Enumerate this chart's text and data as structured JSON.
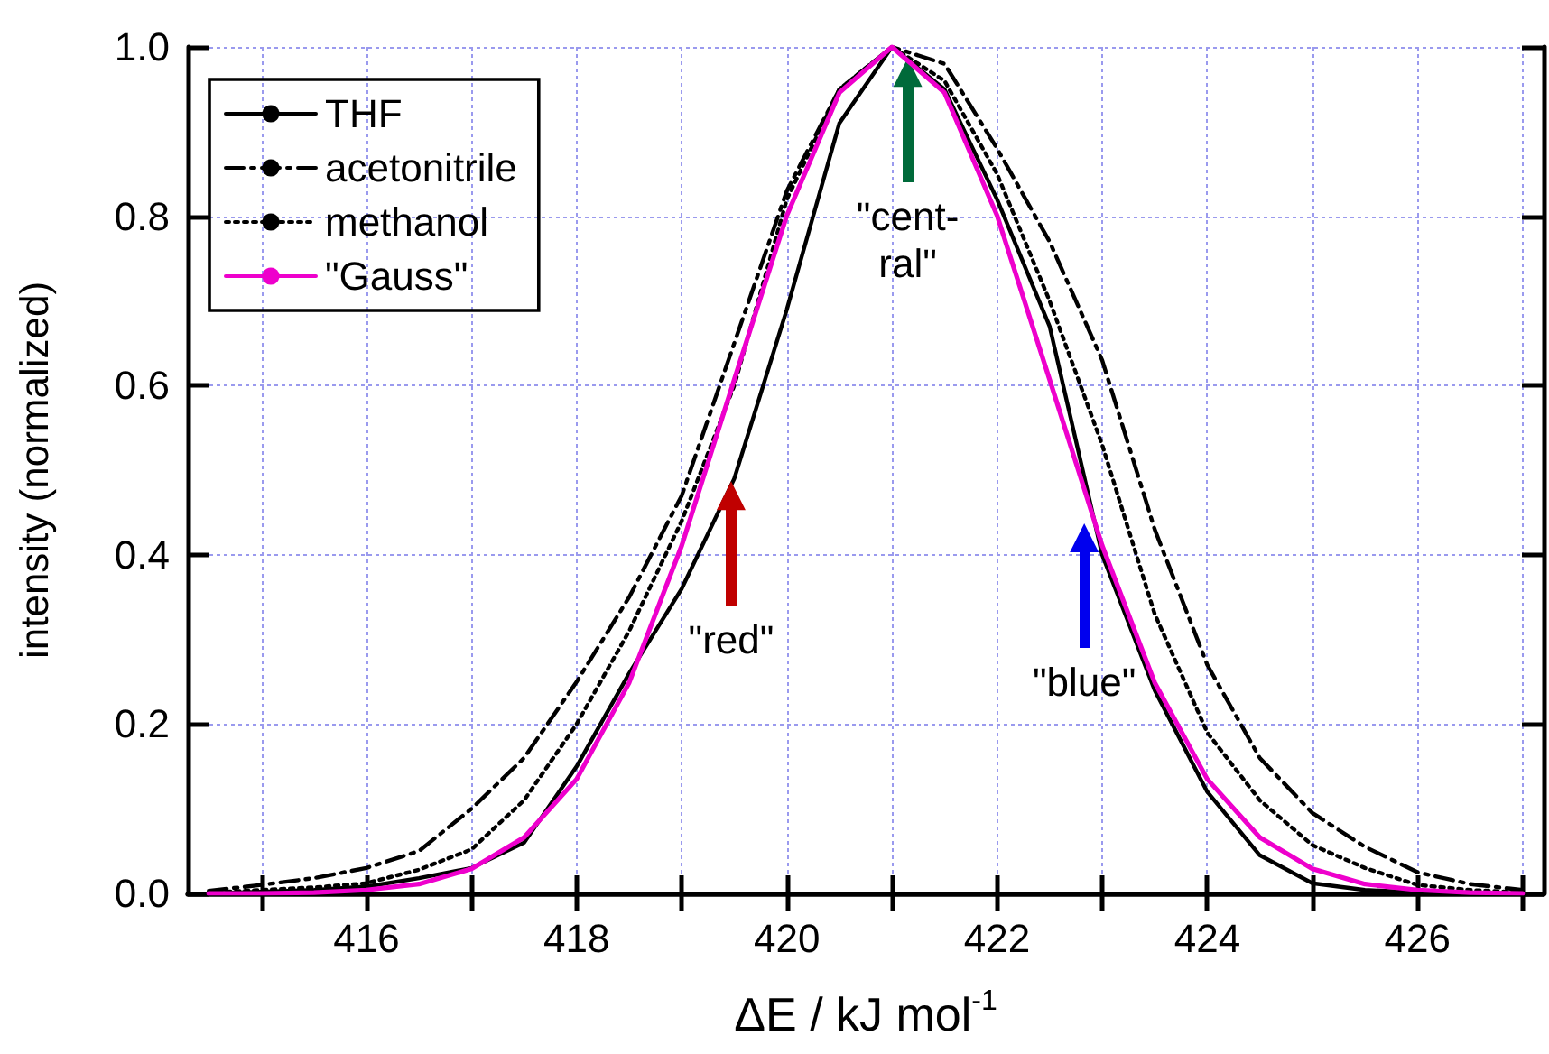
{
  "chart_data": {
    "type": "line",
    "xlabel": "ΔE / kJ mol$^{-1}$",
    "ylabel": "intensity (normalized)",
    "xlim": [
      414.3,
      427.2
    ],
    "xticks": [
      {
        "value": 415,
        "label": null
      },
      416,
      {
        "value": 417,
        "label": null
      },
      418,
      {
        "value": 419,
        "label": null
      },
      420,
      {
        "value": 421,
        "label": null
      },
      422,
      {
        "value": 423,
        "label": null
      },
      424,
      {
        "value": 425,
        "label": null
      },
      426,
      {
        "value": 427,
        "label": null
      }
    ],
    "ylim": [
      0,
      1.0
    ],
    "yticks": [
      {
        "value": 0,
        "label": "0.0"
      },
      0.2,
      0.4,
      0.6,
      0.8,
      {
        "value": 1.0,
        "label": "1.0"
      }
    ],
    "grid": true,
    "legend": "top left",
    "marker": "none",
    "x": [
      414.5,
      415,
      415.5,
      416,
      416.5,
      417,
      417.5,
      418,
      418.5,
      419,
      419.5,
      420,
      420.5,
      421,
      421.5,
      422,
      422.5,
      423,
      423.5,
      424,
      424.5,
      425,
      425.5,
      426,
      426.5,
      427
    ],
    "series": [
      {
        "name": "THF",
        "color": "#000000",
        "line_style": "solid",
        "values": [
          0,
          0.002,
          0.004,
          0.008,
          0.018,
          0.03,
          0.06,
          0.15,
          0.26,
          0.36,
          0.49,
          0.69,
          0.91,
          1.0,
          0.95,
          0.82,
          0.67,
          0.4,
          0.24,
          0.12,
          0.045,
          0.012,
          0.004,
          0.001,
          0,
          0
        ]
      },
      {
        "name": "acetonitrile",
        "color": "#000000",
        "line_style": "dashdot",
        "values": [
          0.003,
          0.01,
          0.018,
          0.03,
          0.05,
          0.1,
          0.16,
          0.25,
          0.35,
          0.47,
          0.65,
          0.83,
          0.95,
          1.0,
          0.98,
          0.88,
          0.77,
          0.63,
          0.43,
          0.27,
          0.16,
          0.095,
          0.055,
          0.025,
          0.011,
          0.004
        ]
      },
      {
        "name": "methanol",
        "color": "#000000",
        "line_style": "dotted",
        "values": [
          0.001,
          0.004,
          0.007,
          0.012,
          0.028,
          0.052,
          0.11,
          0.2,
          0.31,
          0.44,
          0.6,
          0.82,
          0.95,
          1.0,
          0.96,
          0.85,
          0.7,
          0.53,
          0.33,
          0.19,
          0.11,
          0.057,
          0.03,
          0.01,
          0.004,
          0.001
        ]
      },
      {
        "name": "\"Gauss\"",
        "color": "#ee00cc",
        "line_style": "solid",
        "values": [
          0,
          0,
          0.001,
          0.004,
          0.011,
          0.029,
          0.066,
          0.135,
          0.249,
          0.411,
          0.607,
          0.801,
          0.946,
          1.0,
          0.946,
          0.801,
          0.607,
          0.411,
          0.249,
          0.135,
          0.066,
          0.029,
          0.011,
          0.004,
          0.001,
          0
        ]
      }
    ],
    "annotations": [
      {
        "text": "\"red\"",
        "x": 419.47,
        "y": 0.47
      },
      {
        "text": "\"cent-\nral\"",
        "x": 421.15,
        "y": 0.97
      },
      {
        "text": "\"blue\"",
        "x": 422.83,
        "y": 0.42
      }
    ]
  }
}
